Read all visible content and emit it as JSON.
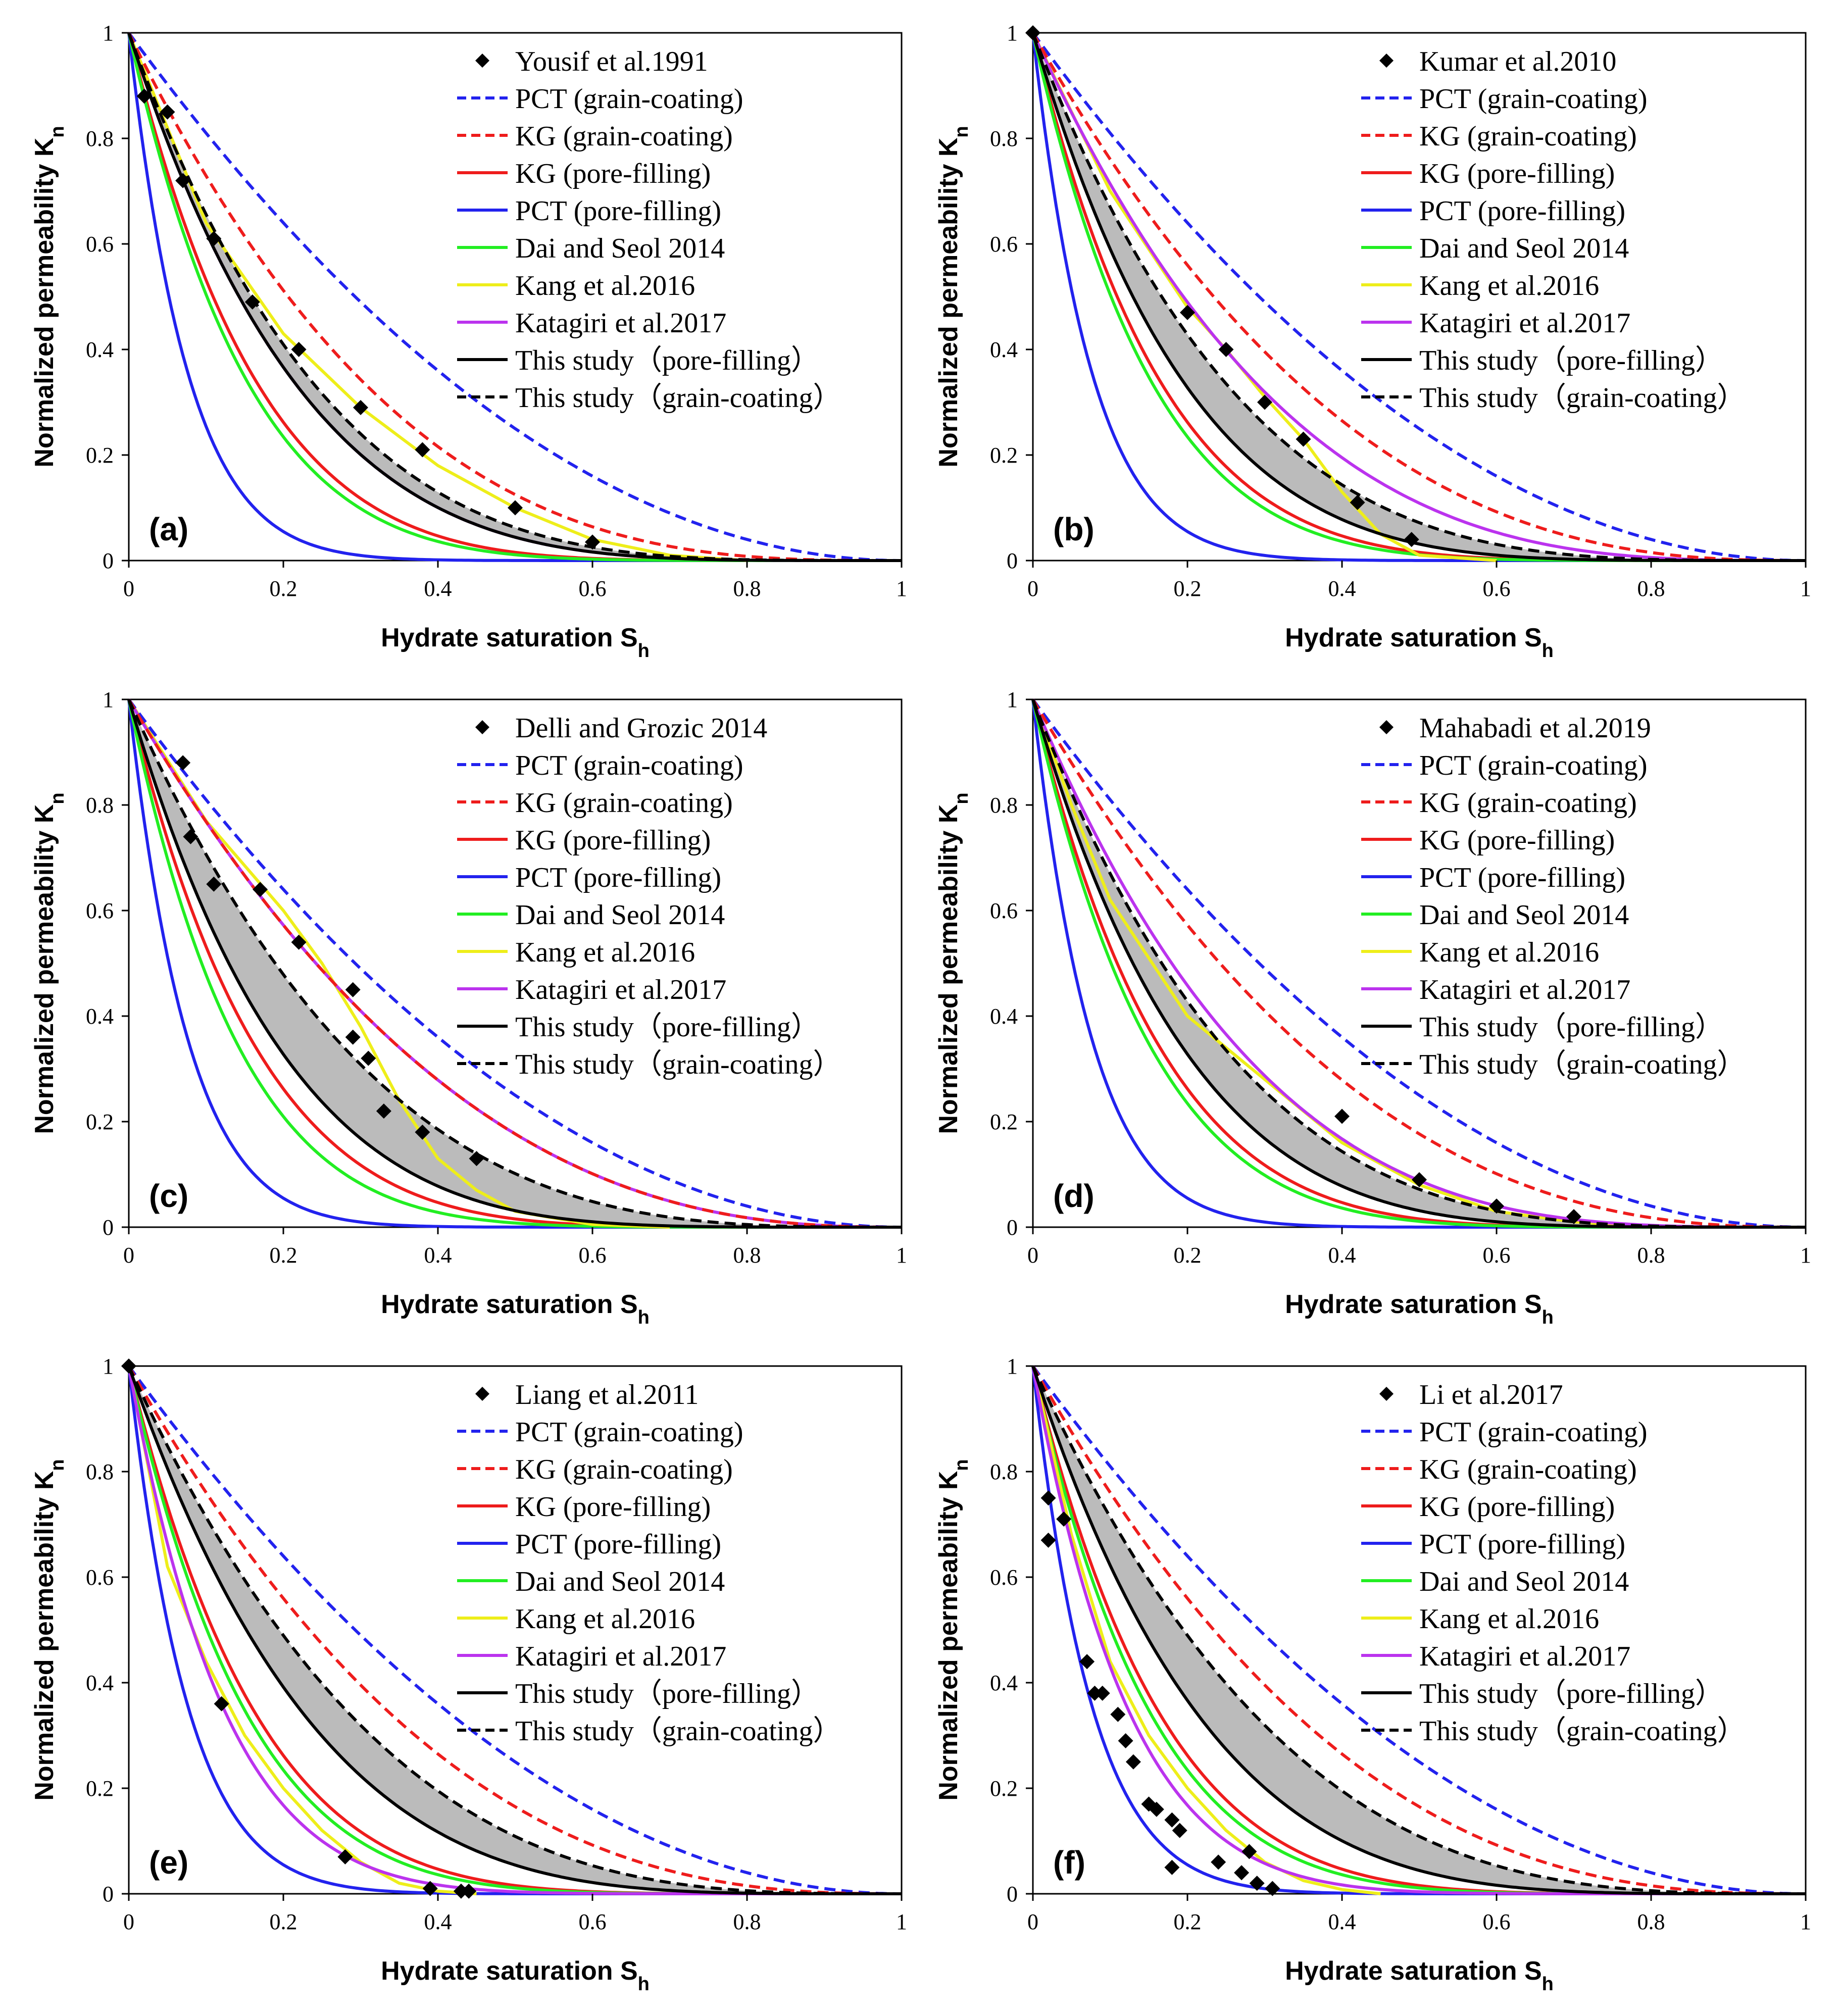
{
  "figure": {
    "x_axis_label": "Hydrate saturation S",
    "x_axis_sub": "h",
    "y_axis_label": "Normalized  permeability K",
    "y_axis_sub": "n",
    "x_ticks": [
      "0",
      "0.2",
      "0.4",
      "0.6",
      "0.8",
      "1"
    ],
    "y_ticks": [
      "0",
      "0.2",
      "0.4",
      "0.6",
      "0.8",
      "1"
    ],
    "shaded_band_color": "#bbbbbb",
    "legend_series": [
      {
        "name": "PCT (grain-coating)",
        "color": "#2222ee",
        "dash": true
      },
      {
        "name": "KG (grain-coating)",
        "color": "#ee1c1c",
        "dash": true
      },
      {
        "name": "KG (pore-filling)",
        "color": "#ee1c1c",
        "dash": false
      },
      {
        "name": "PCT (pore-filling)",
        "color": "#2222ee",
        "dash": false
      },
      {
        "name": "Dai and Seol 2014",
        "color": "#22ee22",
        "dash": false
      },
      {
        "name": "Kang et al.2016",
        "color": "#eeee1a",
        "dash": false
      },
      {
        "name": "Katagiri et al.2017",
        "color": "#bb33ee",
        "dash": false
      },
      {
        "name": "This study（pore-filling）",
        "color": "#000000",
        "dash": false
      },
      {
        "name": "This study（grain-coating）",
        "color": "#000000",
        "dash": true
      }
    ]
  },
  "chart_data": [
    {
      "type": "line",
      "panel_label": "(a)",
      "dataset": "Yousif et al.1991",
      "xlim": [
        0,
        1
      ],
      "ylim": [
        0,
        1
      ],
      "x_axis": "Hydrate saturation S_h",
      "y_axis": "Normalized permeability K_n",
      "points": [
        [
          0.02,
          0.88
        ],
        [
          0.05,
          0.85
        ],
        [
          0.07,
          0.72
        ],
        [
          0.11,
          0.61
        ],
        [
          0.16,
          0.49
        ],
        [
          0.22,
          0.4
        ],
        [
          0.3,
          0.29
        ],
        [
          0.38,
          0.21
        ],
        [
          0.5,
          0.1
        ],
        [
          0.6,
          0.035
        ]
      ],
      "model_exponents": {
        "PCT (grain-coating)": 2.0,
        "KG (grain-coating)": 3.0,
        "KG (pore-filling)": 6.0,
        "PCT (pore-filling)": 13.0,
        "Dai and Seol 2014": 6.5,
        "Katagiri et al.2017": 4.5,
        "This study (pore-filling)": 4.5,
        "This study (grain-coating)": 4.0
      },
      "kang_curve": [
        [
          0,
          1
        ],
        [
          0.1,
          0.64
        ],
        [
          0.2,
          0.43
        ],
        [
          0.3,
          0.29
        ],
        [
          0.4,
          0.18
        ],
        [
          0.5,
          0.1
        ],
        [
          0.6,
          0.04
        ],
        [
          0.7,
          0.01
        ],
        [
          0.8,
          0
        ]
      ]
    },
    {
      "type": "line",
      "panel_label": "(b)",
      "dataset": "Kumar et al.2010",
      "xlim": [
        0,
        1
      ],
      "ylim": [
        0,
        1
      ],
      "x_axis": "Hydrate saturation S_h",
      "y_axis": "Normalized permeability K_n",
      "points": [
        [
          0.0,
          1.0
        ],
        [
          0.2,
          0.47
        ],
        [
          0.25,
          0.4
        ],
        [
          0.3,
          0.3
        ],
        [
          0.35,
          0.23
        ],
        [
          0.42,
          0.11
        ],
        [
          0.49,
          0.04
        ]
      ],
      "model_exponents": {
        "PCT (grain-coating)": 2.0,
        "KG (grain-coating)": 2.6,
        "KG (pore-filling)": 6.0,
        "PCT (pore-filling)": 13.0,
        "Dai and Seol 2014": 6.5,
        "Katagiri et al.2017": 3.2,
        "This study (pore-filling)": 5.0,
        "This study (grain-coating)": 3.8
      },
      "kang_curve": [
        [
          0,
          1
        ],
        [
          0.1,
          0.7
        ],
        [
          0.2,
          0.48
        ],
        [
          0.25,
          0.4
        ],
        [
          0.3,
          0.31
        ],
        [
          0.35,
          0.23
        ],
        [
          0.4,
          0.13
        ],
        [
          0.45,
          0.05
        ],
        [
          0.5,
          0.01
        ],
        [
          0.6,
          0
        ]
      ]
    },
    {
      "type": "line",
      "panel_label": "(c)",
      "dataset": "Delli and Grozic 2014",
      "xlim": [
        0,
        1
      ],
      "ylim": [
        0,
        1
      ],
      "x_axis": "Hydrate saturation S_h",
      "y_axis": "Normalized permeability K_n",
      "points": [
        [
          0.07,
          0.88
        ],
        [
          0.08,
          0.74
        ],
        [
          0.11,
          0.65
        ],
        [
          0.17,
          0.64
        ],
        [
          0.22,
          0.54
        ],
        [
          0.29,
          0.45
        ],
        [
          0.29,
          0.36
        ],
        [
          0.31,
          0.32
        ],
        [
          0.33,
          0.22
        ],
        [
          0.38,
          0.18
        ],
        [
          0.45,
          0.13
        ]
      ],
      "model_exponents": {
        "PCT (grain-coating)": 2.0,
        "KG (grain-coating)": 2.5,
        "KG (pore-filling)": 6.0,
        "PCT (pore-filling)": 13.0,
        "Dai and Seol 2014": 7.0,
        "Katagiri et al.2017": 2.5,
        "This study (pore-filling)": 5.0,
        "This study (grain-coating)": 3.3
      },
      "kang_curve": [
        [
          0,
          1
        ],
        [
          0.1,
          0.77
        ],
        [
          0.2,
          0.6
        ],
        [
          0.25,
          0.5
        ],
        [
          0.3,
          0.38
        ],
        [
          0.35,
          0.24
        ],
        [
          0.4,
          0.13
        ],
        [
          0.45,
          0.07
        ],
        [
          0.5,
          0.03
        ],
        [
          0.6,
          0.005
        ],
        [
          0.7,
          0
        ]
      ]
    },
    {
      "type": "line",
      "panel_label": "(d)",
      "dataset": "Mahabadi et al.2019",
      "xlim": [
        0,
        1
      ],
      "ylim": [
        0,
        1
      ],
      "x_axis": "Hydrate saturation S_h",
      "y_axis": "Normalized permeability K_n",
      "points": [
        [
          0.4,
          0.21
        ],
        [
          0.5,
          0.09
        ],
        [
          0.6,
          0.04
        ],
        [
          0.7,
          0.02
        ]
      ],
      "model_exponents": {
        "PCT (grain-coating)": 2.0,
        "KG (grain-coating)": 2.5,
        "KG (pore-filling)": 6.0,
        "PCT (pore-filling)": 13.0,
        "Dai and Seol 2014": 6.5,
        "Katagiri et al.2017": 3.5,
        "This study (pore-filling)": 5.0,
        "This study (grain-coating)": 3.8
      },
      "kang_curve": [
        [
          0,
          1
        ],
        [
          0.05,
          0.8
        ],
        [
          0.1,
          0.62
        ],
        [
          0.2,
          0.4
        ],
        [
          0.3,
          0.28
        ],
        [
          0.4,
          0.16
        ],
        [
          0.5,
          0.08
        ],
        [
          0.6,
          0.03
        ],
        [
          0.7,
          0.01
        ],
        [
          0.8,
          0
        ]
      ]
    },
    {
      "type": "line",
      "panel_label": "(e)",
      "dataset": "Liang et al.2011",
      "xlim": [
        0,
        1
      ],
      "ylim": [
        0,
        1
      ],
      "x_axis": "Hydrate saturation S_h",
      "y_axis": "Normalized permeability K_n",
      "points": [
        [
          0.0,
          1.0
        ],
        [
          0.12,
          0.36
        ],
        [
          0.28,
          0.07
        ],
        [
          0.39,
          0.01
        ],
        [
          0.43,
          0.005
        ],
        [
          0.44,
          0.005
        ]
      ],
      "model_exponents": {
        "PCT (grain-coating)": 2.0,
        "KG (grain-coating)": 2.6,
        "KG (pore-filling)": 6.0,
        "PCT (pore-filling)": 13.0,
        "Dai and Seol 2014": 6.5,
        "Katagiri et al.2017": 8.0,
        "This study (pore-filling)": 4.2,
        "This study (grain-coating)": 3.2
      },
      "kang_curve": [
        [
          0,
          1
        ],
        [
          0.05,
          0.62
        ],
        [
          0.1,
          0.44
        ],
        [
          0.15,
          0.3
        ],
        [
          0.2,
          0.2
        ],
        [
          0.25,
          0.12
        ],
        [
          0.3,
          0.06
        ],
        [
          0.35,
          0.02
        ],
        [
          0.4,
          0.005
        ],
        [
          0.45,
          0
        ]
      ]
    },
    {
      "type": "line",
      "panel_label": "(f)",
      "dataset": "Li et al.2017",
      "xlim": [
        0,
        1
      ],
      "ylim": [
        0,
        1
      ],
      "x_axis": "Hydrate saturation S_h",
      "y_axis": "Normalized permeability K_n",
      "points": [
        [
          0.02,
          0.67
        ],
        [
          0.02,
          0.75
        ],
        [
          0.04,
          0.71
        ],
        [
          0.07,
          0.44
        ],
        [
          0.08,
          0.38
        ],
        [
          0.09,
          0.38
        ],
        [
          0.11,
          0.34
        ],
        [
          0.12,
          0.29
        ],
        [
          0.13,
          0.25
        ],
        [
          0.15,
          0.17
        ],
        [
          0.16,
          0.16
        ],
        [
          0.18,
          0.14
        ],
        [
          0.19,
          0.12
        ],
        [
          0.18,
          0.05
        ],
        [
          0.24,
          0.06
        ],
        [
          0.27,
          0.04
        ],
        [
          0.28,
          0.08
        ],
        [
          0.29,
          0.02
        ],
        [
          0.31,
          0.01
        ]
      ],
      "model_exponents": {
        "PCT (grain-coating)": 2.0,
        "KG (grain-coating)": 2.6,
        "KG (pore-filling)": 6.0,
        "PCT (pore-filling)": 13.0,
        "Dai and Seol 2014": 6.5,
        "Katagiri et al.2017": 8.0,
        "This study (pore-filling)": 4.5,
        "This study (grain-coating)": 3.2
      },
      "kang_curve": [
        [
          0,
          1
        ],
        [
          0.05,
          0.68
        ],
        [
          0.1,
          0.44
        ],
        [
          0.15,
          0.3
        ],
        [
          0.2,
          0.2
        ],
        [
          0.25,
          0.12
        ],
        [
          0.3,
          0.06
        ],
        [
          0.35,
          0.025
        ],
        [
          0.4,
          0.008
        ],
        [
          0.45,
          0
        ]
      ]
    }
  ]
}
